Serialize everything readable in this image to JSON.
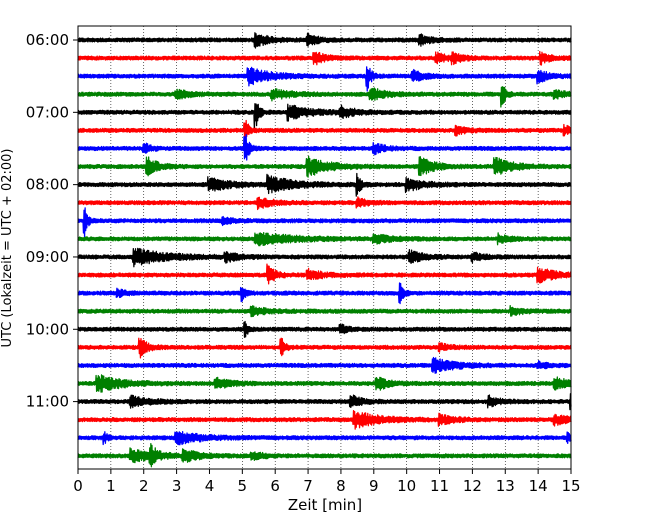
{
  "chart_data": {
    "type": "line",
    "title": "",
    "xlabel": "Zeit  [min]",
    "ylabel": "UTC (Lokalzeit = UTC + 02:00)",
    "xlim": [
      0,
      15
    ],
    "x_ticks": [
      0,
      1,
      2,
      3,
      4,
      5,
      6,
      7,
      8,
      9,
      10,
      11,
      12,
      13,
      14,
      15
    ],
    "y_tick_labels": [
      "06:00",
      "07:00",
      "08:00",
      "09:00",
      "10:00",
      "11:00"
    ],
    "grid": "vertical dotted lines at each minute",
    "trace_colors": [
      "#000000",
      "#ff0000",
      "#0000ff",
      "#008000"
    ],
    "traces": [
      {
        "start": "06:00",
        "color": "#000000",
        "events": [
          [
            5.4,
            6,
            0.4
          ],
          [
            7.0,
            5,
            0.3
          ],
          [
            10.4,
            5,
            0.3
          ]
        ]
      },
      {
        "start": "06:15",
        "color": "#ff0000",
        "events": [
          [
            7.2,
            6,
            0.3
          ],
          [
            10.9,
            5,
            0.3
          ],
          [
            11.4,
            4,
            0.3
          ],
          [
            14.1,
            5,
            0.3
          ]
        ]
      },
      {
        "start": "06:30",
        "color": "#0000ff",
        "events": [
          [
            5.2,
            8,
            0.6
          ],
          [
            8.8,
            14,
            0.1
          ],
          [
            10.2,
            5,
            0.3
          ],
          [
            14.0,
            6,
            0.3
          ]
        ]
      },
      {
        "start": "06:45",
        "color": "#008000",
        "events": [
          [
            3.0,
            4,
            0.4
          ],
          [
            5.9,
            5,
            0.5
          ],
          [
            8.9,
            6,
            0.4
          ],
          [
            12.9,
            12,
            0.1
          ],
          [
            14.5,
            4,
            0.3
          ]
        ]
      },
      {
        "start": "07:00",
        "color": "#000000",
        "events": [
          [
            5.4,
            16,
            0.1
          ],
          [
            6.4,
            7,
            0.6
          ],
          [
            8.0,
            5,
            0.4
          ]
        ]
      },
      {
        "start": "07:15",
        "color": "#ff0000",
        "events": [
          [
            5.1,
            10,
            0.1
          ],
          [
            11.5,
            4,
            0.3
          ],
          [
            14.8,
            4,
            0.3
          ]
        ]
      },
      {
        "start": "07:30",
        "color": "#0000ff",
        "events": [
          [
            5.1,
            14,
            0.1
          ],
          [
            2.0,
            5,
            0.2
          ],
          [
            9.0,
            5,
            0.3
          ]
        ]
      },
      {
        "start": "07:45",
        "color": "#008000",
        "events": [
          [
            2.1,
            9,
            0.3
          ],
          [
            7.0,
            9,
            0.6
          ],
          [
            10.4,
            9,
            0.4
          ],
          [
            12.7,
            8,
            0.5
          ]
        ]
      },
      {
        "start": "08:00",
        "color": "#000000",
        "events": [
          [
            4.0,
            6,
            0.6
          ],
          [
            5.8,
            8,
            0.7
          ],
          [
            8.5,
            10,
            0.1
          ],
          [
            10.0,
            6,
            0.5
          ]
        ]
      },
      {
        "start": "08:15",
        "color": "#ff0000",
        "events": [
          [
            5.5,
            5,
            0.4
          ],
          [
            8.5,
            4,
            0.3
          ]
        ]
      },
      {
        "start": "08:30",
        "color": "#0000ff",
        "events": [
          [
            0.2,
            16,
            0.08
          ],
          [
            4.4,
            3,
            0.3
          ]
        ]
      },
      {
        "start": "08:45",
        "color": "#008000",
        "events": [
          [
            5.4,
            6,
            1.0
          ],
          [
            9.0,
            4,
            0.5
          ],
          [
            12.8,
            4,
            0.3
          ]
        ]
      },
      {
        "start": "09:00",
        "color": "#000000",
        "events": [
          [
            1.7,
            8,
            0.9
          ],
          [
            4.5,
            4,
            0.4
          ],
          [
            10.1,
            6,
            0.4
          ],
          [
            12.0,
            4,
            0.3
          ]
        ]
      },
      {
        "start": "09:15",
        "color": "#ff0000",
        "events": [
          [
            5.8,
            9,
            0.2
          ],
          [
            7.0,
            5,
            0.4
          ],
          [
            14.0,
            7,
            0.5
          ]
        ]
      },
      {
        "start": "09:30",
        "color": "#0000ff",
        "events": [
          [
            5.0,
            7,
            0.1
          ],
          [
            9.8,
            10,
            0.1
          ],
          [
            1.2,
            4,
            0.2
          ]
        ]
      },
      {
        "start": "09:45",
        "color": "#008000",
        "events": [
          [
            5.3,
            4,
            0.4
          ],
          [
            13.2,
            4,
            0.3
          ]
        ]
      },
      {
        "start": "10:00",
        "color": "#000000",
        "events": [
          [
            5.1,
            6,
            0.1
          ],
          [
            8.0,
            4,
            0.2
          ]
        ]
      },
      {
        "start": "10:15",
        "color": "#ff0000",
        "events": [
          [
            1.9,
            9,
            0.2
          ],
          [
            6.2,
            8,
            0.1
          ],
          [
            11.0,
            3,
            0.3
          ]
        ]
      },
      {
        "start": "10:30",
        "color": "#0000ff",
        "events": [
          [
            10.8,
            7,
            0.6
          ],
          [
            14.0,
            3,
            0.3
          ]
        ]
      },
      {
        "start": "10:45",
        "color": "#008000",
        "events": [
          [
            0.6,
            8,
            0.7
          ],
          [
            4.2,
            5,
            0.4
          ],
          [
            9.1,
            7,
            0.3
          ],
          [
            14.5,
            6,
            0.4
          ]
        ]
      },
      {
        "start": "11:00",
        "color": "#000000",
        "events": [
          [
            1.6,
            5,
            0.5
          ],
          [
            8.3,
            6,
            0.3
          ],
          [
            12.5,
            5,
            0.3
          ],
          [
            15.0,
            7,
            0.1
          ]
        ]
      },
      {
        "start": "11:15",
        "color": "#ff0000",
        "events": [
          [
            8.4,
            8,
            0.7
          ],
          [
            11.0,
            5,
            0.4
          ],
          [
            14.5,
            5,
            0.4
          ]
        ]
      },
      {
        "start": "11:30",
        "color": "#0000ff",
        "events": [
          [
            3.0,
            6,
            0.7
          ],
          [
            0.8,
            5,
            0.1
          ],
          [
            14.9,
            4,
            0.1
          ]
        ]
      },
      {
        "start": "11:45",
        "color": "#008000",
        "events": [
          [
            1.6,
            6,
            0.6
          ],
          [
            2.2,
            9,
            0.2
          ],
          [
            3.2,
            6,
            0.4
          ],
          [
            5.3,
            4,
            0.3
          ]
        ]
      }
    ]
  }
}
